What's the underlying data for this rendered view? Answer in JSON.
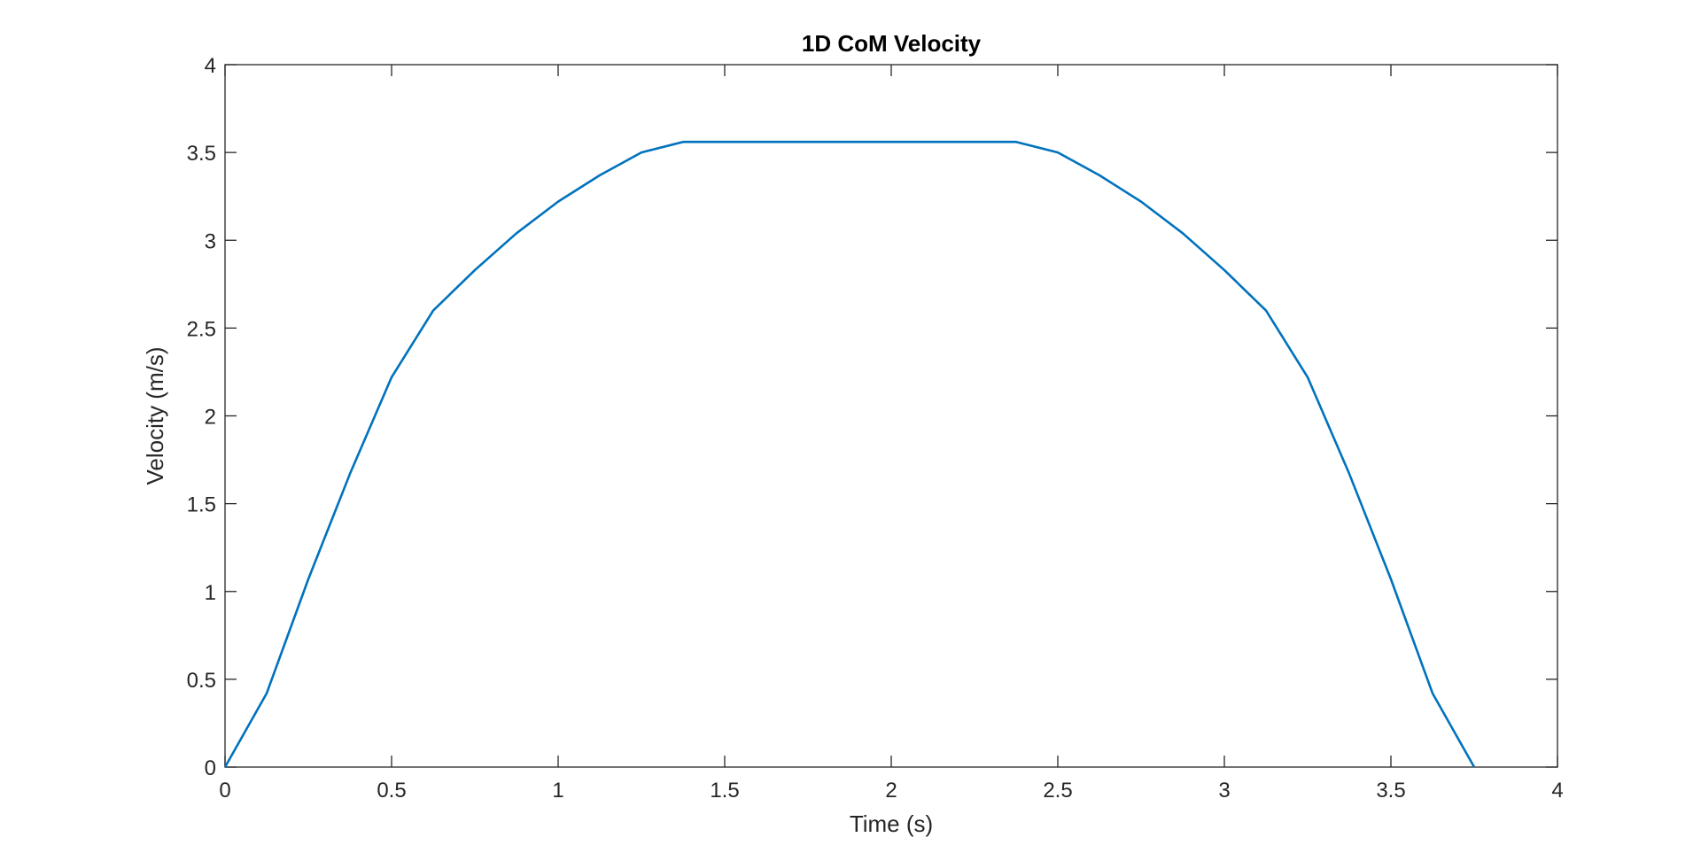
{
  "chart_data": {
    "type": "line",
    "title": "1D CoM Velocity",
    "xlabel": "Time (s)",
    "ylabel": "Velocity (m/s)",
    "xlim": [
      0,
      4
    ],
    "ylim": [
      0,
      4
    ],
    "xticks": [
      0,
      0.5,
      1,
      1.5,
      2,
      2.5,
      3,
      3.5,
      4
    ],
    "xtick_labels": [
      "0",
      "0.5",
      "1",
      "1.5",
      "2",
      "2.5",
      "3",
      "3.5",
      "4"
    ],
    "yticks": [
      0,
      0.5,
      1,
      1.5,
      2,
      2.5,
      3,
      3.5,
      4
    ],
    "ytick_labels": [
      "0",
      "0.5",
      "1",
      "1.5",
      "2",
      "2.5",
      "3",
      "3.5",
      "4"
    ],
    "grid": false,
    "box": true,
    "series": [
      {
        "color": "#0072BD",
        "x": [
          0,
          0.125,
          0.25,
          0.375,
          0.5,
          0.625,
          0.75,
          0.875,
          1.0,
          1.125,
          1.25,
          1.375,
          2.375,
          2.5,
          2.625,
          2.75,
          2.875,
          3.0,
          3.125,
          3.25,
          3.375,
          3.5,
          3.625,
          3.75
        ],
        "y": [
          0,
          0.42,
          1.07,
          1.67,
          2.22,
          2.6,
          2.83,
          3.04,
          3.22,
          3.37,
          3.5,
          3.56,
          3.56,
          3.5,
          3.37,
          3.22,
          3.04,
          2.83,
          2.6,
          2.22,
          1.67,
          1.07,
          0.42,
          0
        ]
      }
    ]
  }
}
